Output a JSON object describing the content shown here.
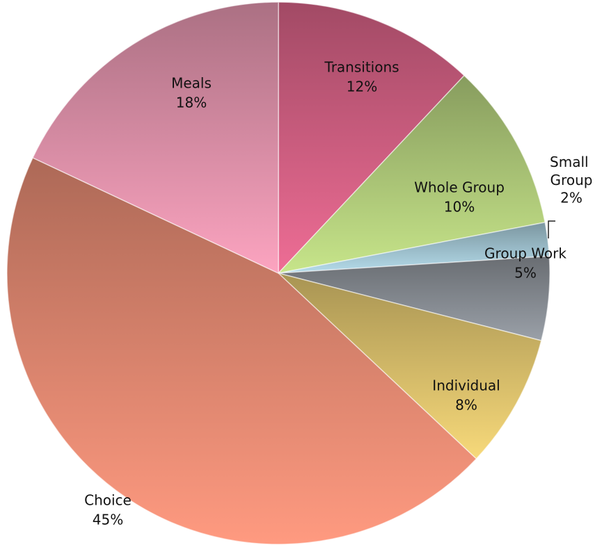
{
  "chart_data": {
    "type": "pie",
    "categories": [
      "Transitions",
      "Whole Group",
      "Small Group",
      "Group Work",
      "Individual",
      "Choice",
      "Meals"
    ],
    "values": [
      12,
      10,
      2,
      5,
      8,
      45,
      18
    ],
    "value_labels": [
      "12%",
      "10%",
      "2%",
      "5%",
      "8%",
      "45%",
      "18%"
    ],
    "colors": [
      "#ee6d95",
      "#c7e58a",
      "#b5dceb",
      "#9aa0a8",
      "#f7d97a",
      "#ff9a80",
      "#fca4c0"
    ]
  }
}
